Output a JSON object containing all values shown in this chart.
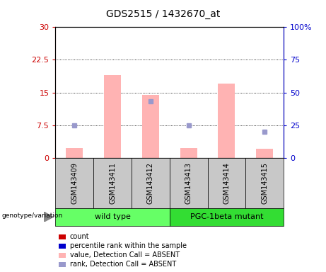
{
  "title": "GDS2515 / 1432670_at",
  "samples": [
    "GSM143409",
    "GSM143411",
    "GSM143412",
    "GSM143413",
    "GSM143414",
    "GSM143415"
  ],
  "pink_bar_values": [
    2.2,
    19.0,
    14.5,
    2.2,
    17.0,
    2.0
  ],
  "blue_square_values": [
    25,
    null,
    43,
    25,
    null,
    20
  ],
  "ylim_left": [
    0,
    30
  ],
  "ylim_right": [
    0,
    100
  ],
  "yticks_left": [
    0,
    7.5,
    15,
    22.5,
    30
  ],
  "ytick_labels_left": [
    "0",
    "7.5",
    "15",
    "22.5",
    "30"
  ],
  "yticks_right": [
    0,
    25,
    50,
    75,
    100
  ],
  "ytick_labels_right": [
    "0",
    "25",
    "50",
    "75",
    "100%"
  ],
  "left_axis_color": "#cc0000",
  "right_axis_color": "#0000cc",
  "pink_bar_color": "#ffb3b3",
  "blue_sq_color": "#9999cc",
  "bg_sample_row": "#c8c8c8",
  "green_wild": "#66ff66",
  "green_mutant": "#33dd33",
  "groups_def": [
    {
      "label": "wild type",
      "start": 0,
      "end": 3,
      "color": "#66ff66"
    },
    {
      "label": "PGC-1beta mutant",
      "start": 3,
      "end": 6,
      "color": "#33dd33"
    }
  ],
  "legend_items": [
    {
      "color": "#cc0000",
      "label": "count"
    },
    {
      "color": "#0000cc",
      "label": "percentile rank within the sample"
    },
    {
      "color": "#ffb3b3",
      "label": "value, Detection Call = ABSENT"
    },
    {
      "color": "#9999cc",
      "label": "rank, Detection Call = ABSENT"
    }
  ],
  "grid_lines": [
    7.5,
    15,
    22.5
  ]
}
